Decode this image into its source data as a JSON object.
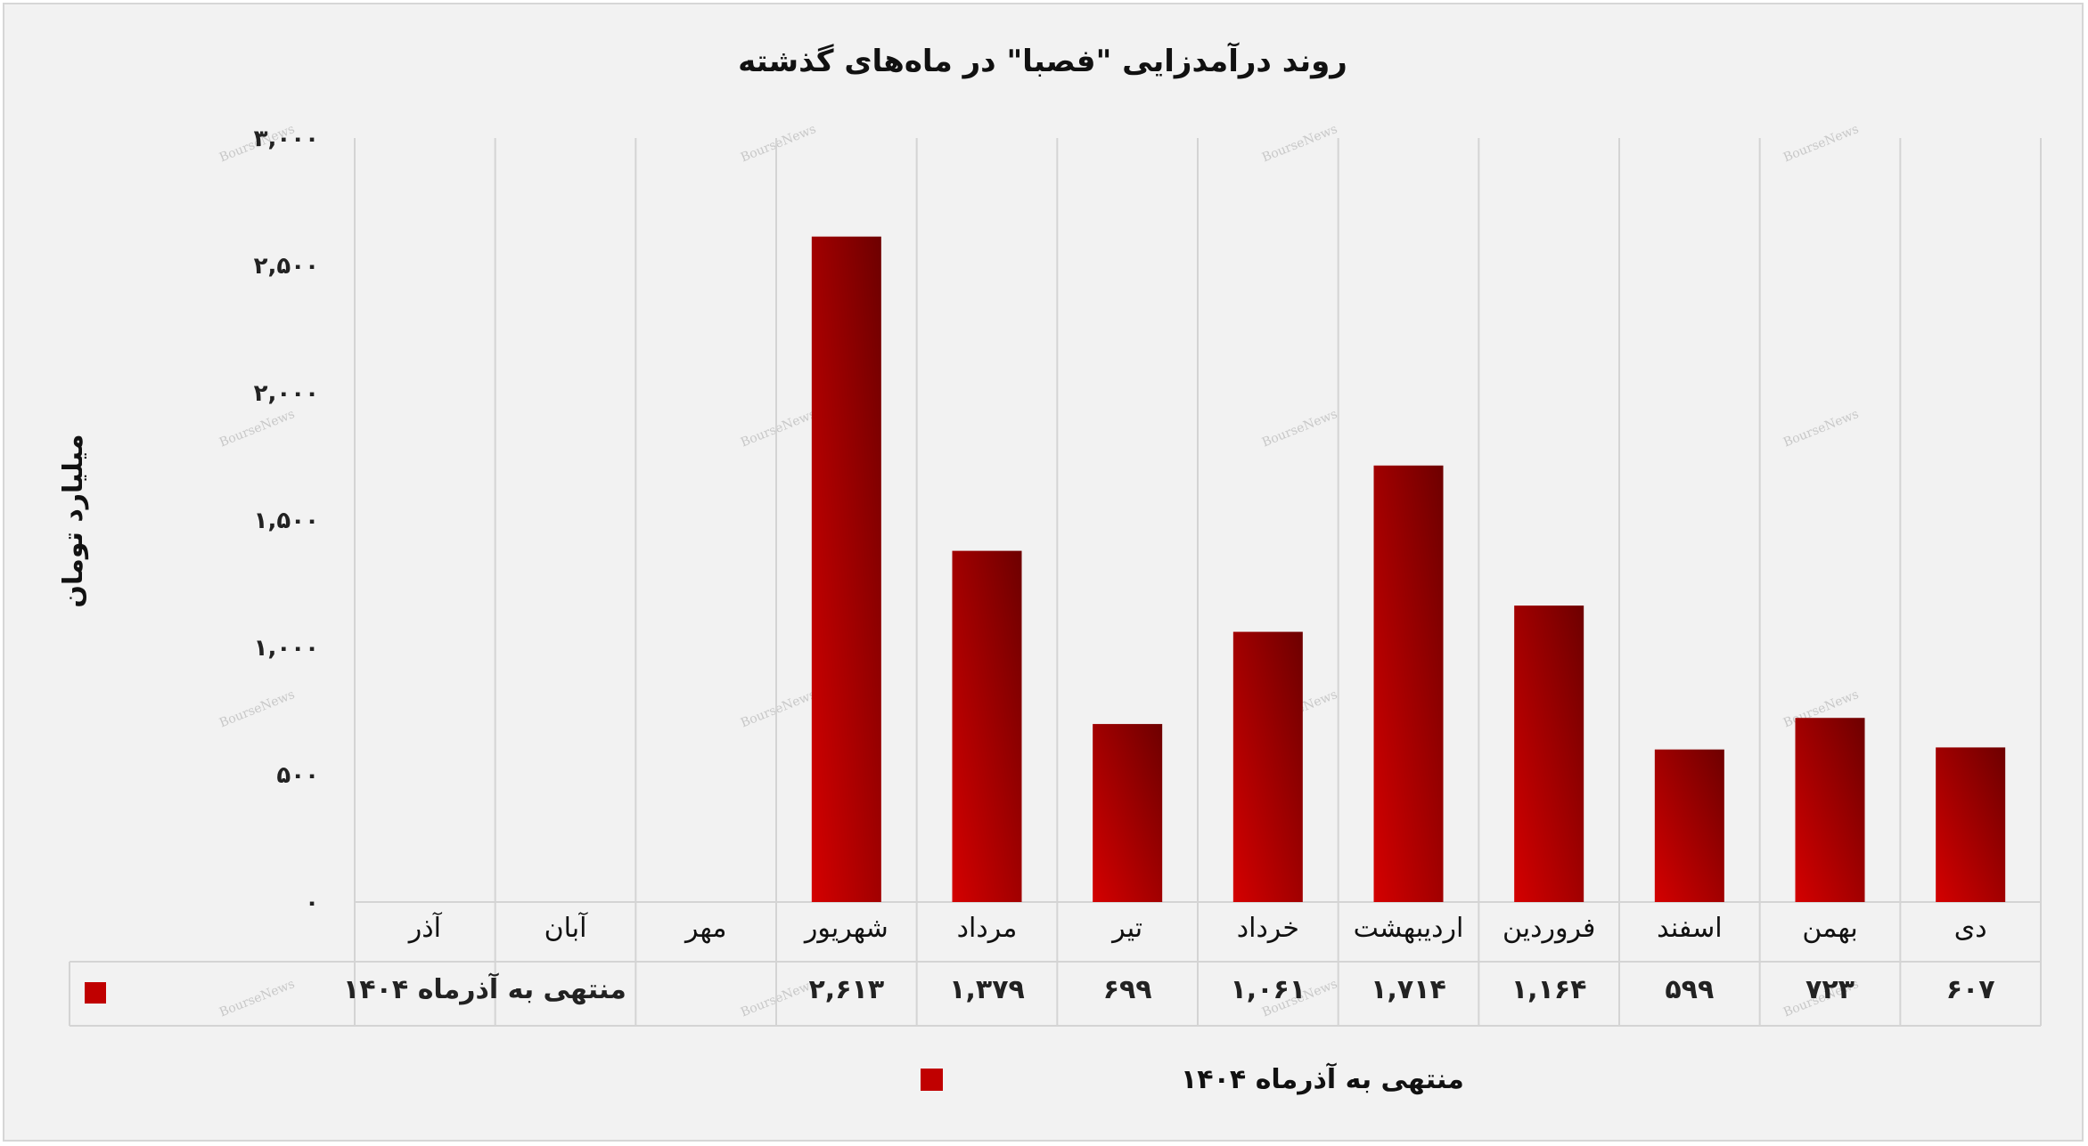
{
  "chart_data": {
    "type": "bar",
    "title": "روند درآمدزایی \"فصبا\" در ماه‌های گذشته",
    "ylabel": "میلیارد تومان",
    "xlabel": "",
    "ylim": [
      0,
      3000
    ],
    "yticks": [
      0,
      500,
      1000,
      1500,
      2000,
      2500,
      3000
    ],
    "ytick_labels": [
      "۰",
      "۵۰۰",
      "۱,۰۰۰",
      "۱,۵۰۰",
      "۲,۰۰۰",
      "۲,۵۰۰",
      "۳,۰۰۰"
    ],
    "categories": [
      "دی",
      "بهمن",
      "اسفند",
      "فروردین",
      "اردیبهشت",
      "خرداد",
      "تیر",
      "مرداد",
      "شهریور",
      "مهر",
      "آبان",
      "آذر"
    ],
    "series": [
      {
        "name": "منتهی به آذرماه ۱۴۰۴",
        "values": [
          607,
          723,
          599,
          1164,
          1714,
          1061,
          699,
          1379,
          2613,
          null,
          null,
          null
        ],
        "value_labels": [
          "۶۰۷",
          "۷۲۳",
          "۵۹۹",
          "۱,۱۶۴",
          "۱,۷۱۴",
          "۱,۰۶۱",
          "۶۹۹",
          "۱,۳۷۹",
          "۲,۶۱۳",
          "",
          "",
          ""
        ],
        "color": "#c00000"
      }
    ],
    "grid": true,
    "data_table": true,
    "legend_position": "bottom",
    "watermark": "BourseNews"
  }
}
